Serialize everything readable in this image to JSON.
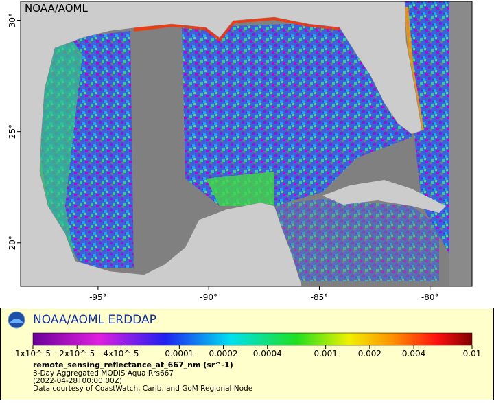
{
  "map": {
    "label": "NOAA/AOML",
    "xlim": [
      -98.5,
      -78.1
    ],
    "ylim": [
      18.05,
      30.85
    ],
    "xticks": [
      {
        "value": -95,
        "label": "-95°"
      },
      {
        "value": -90,
        "label": "-90°"
      },
      {
        "value": -85,
        "label": "-85°"
      },
      {
        "value": -80,
        "label": "-80°"
      }
    ],
    "yticks": [
      {
        "value": 30,
        "label": "30°"
      },
      {
        "value": 25,
        "label": "25°"
      },
      {
        "value": 20,
        "label": "20°"
      }
    ]
  },
  "legend": {
    "title": "NOAA/AOML ERDDAP",
    "colorbar": {
      "scale": "log",
      "lim": [
        1e-05,
        0.01
      ],
      "ticks": [
        {
          "value": 1e-05,
          "label": "1x10^-5"
        },
        {
          "value": 2e-05,
          "label": "2x10^-5"
        },
        {
          "value": 4e-05,
          "label": "4x10^-5"
        },
        0.0001,
        0.0002,
        0.0004,
        0.001,
        0.002,
        0.004,
        0.01
      ]
    },
    "variable": "remote_sensing_reflectance_at_667_nm (sr^-1)",
    "lines": [
      "3-Day Aggregated MODIS Aqua Rrs667",
      "(2022-04-28T00:00:00Z)",
      "Data courtesy of CoastWatch, Carib. and GoM Regional Node"
    ]
  }
}
